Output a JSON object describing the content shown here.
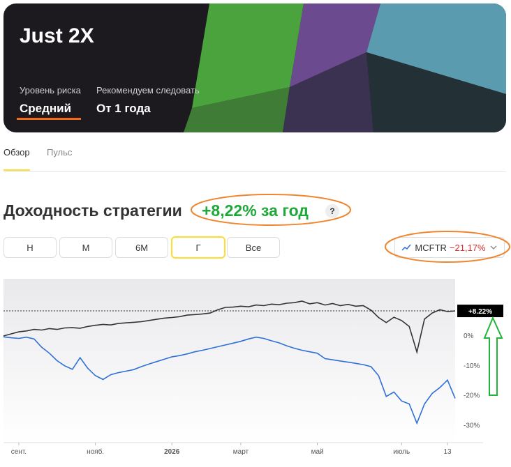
{
  "header": {
    "title": "Just 2X",
    "risk_label": "Уровень риска",
    "risk_value": "Средний",
    "follow_label": "Рекомендуем следовать",
    "follow_value": "От 1 года"
  },
  "tabs": [
    "Обзор",
    "Пульс"
  ],
  "headline": {
    "text": "Доходность стратегии",
    "change": "+8,22% за год",
    "help": "?"
  },
  "periods": [
    "Н",
    "М",
    "6М",
    "Г",
    "Все"
  ],
  "benchmark_change": "−21,17%",
  "chart_data": {
    "type": "line",
    "categories": [
      null,
      null,
      "сент.",
      null,
      null,
      null,
      null,
      null,
      null,
      null,
      null,
      null,
      "нояб.",
      null,
      null,
      null,
      null,
      null,
      null,
      null,
      null,
      null,
      "2026",
      null,
      null,
      null,
      null,
      null,
      null,
      null,
      null,
      "март",
      null,
      null,
      null,
      null,
      null,
      null,
      null,
      null,
      null,
      "май",
      null,
      null,
      null,
      null,
      null,
      null,
      null,
      null,
      null,
      null,
      "июль",
      null,
      null,
      null,
      null,
      null,
      "13",
      null
    ],
    "series": [
      {
        "color": "#333333",
        "values": [
          -0.2,
          0.5,
          1.2,
          1.5,
          2.0,
          1.8,
          2.3,
          2.0,
          2.5,
          2.6,
          2.4,
          3.0,
          3.4,
          3.7,
          3.5,
          4.0,
          4.2,
          4.4,
          4.6,
          5.0,
          5.4,
          5.8,
          6.0,
          6.3,
          6.8,
          7.0,
          7.2,
          7.5,
          8.6,
          9.4,
          9.5,
          9.8,
          9.6,
          10.2,
          10.0,
          10.5,
          10.3,
          10.8,
          11.0,
          11.5,
          10.6,
          11.0,
          10.2,
          10.7,
          10.0,
          10.4,
          9.8,
          10.0,
          8.5,
          6.0,
          4.3,
          6.1,
          5.0,
          3.0,
          -5.6,
          5.5,
          7.5,
          8.6,
          8.0,
          8.22
        ],
        "value_labels": [
          null,
          null,
          null,
          null,
          null,
          null,
          null,
          null,
          null,
          null,
          null,
          null,
          null,
          null,
          null,
          null,
          null,
          null,
          null,
          null,
          null,
          null,
          null,
          null,
          null,
          null,
          null,
          null,
          null,
          null,
          null,
          null,
          null,
          null,
          null,
          null,
          null,
          null,
          null,
          null,
          null,
          null,
          null,
          null,
          null,
          null,
          null,
          null,
          null,
          null,
          null,
          null,
          null,
          null,
          null,
          null,
          null,
          null,
          null,
          "+8.22%"
        ]
      },
      {
        "name": "MCFTR",
        "color": "#2f6fd6",
        "values": [
          -0.5,
          -0.8,
          -1.0,
          -0.6,
          -1.2,
          -4.0,
          -6.0,
          -8.5,
          -10.2,
          -11.4,
          -7.5,
          -11.0,
          -13.5,
          -14.8,
          -13.2,
          -12.5,
          -12.0,
          -11.5,
          -10.5,
          -9.6,
          -8.8,
          -8.0,
          -7.2,
          -6.8,
          -6.2,
          -5.5,
          -5.0,
          -4.4,
          -3.8,
          -3.2,
          -2.6,
          -2.0,
          -1.2,
          -0.6,
          -1.0,
          -1.8,
          -2.5,
          -3.5,
          -4.3,
          -5.0,
          -5.5,
          -6.0,
          -7.8,
          -8.2,
          -8.6,
          -9.0,
          -9.4,
          -9.8,
          -10.5,
          -13.5,
          -20.5,
          -19.0,
          -22.0,
          -23.0,
          -29.5,
          -23.0,
          -19.5,
          -17.5,
          -15.0,
          -21.17
        ]
      }
    ],
    "ylim": [
      -36,
      19
    ],
    "yticks": [
      {
        "value": 0,
        "label": "0%"
      },
      {
        "value": -10,
        "label": "-10%"
      },
      {
        "value": -20,
        "label": "-20%"
      },
      {
        "value": -30,
        "label": "-30%"
      }
    ]
  }
}
